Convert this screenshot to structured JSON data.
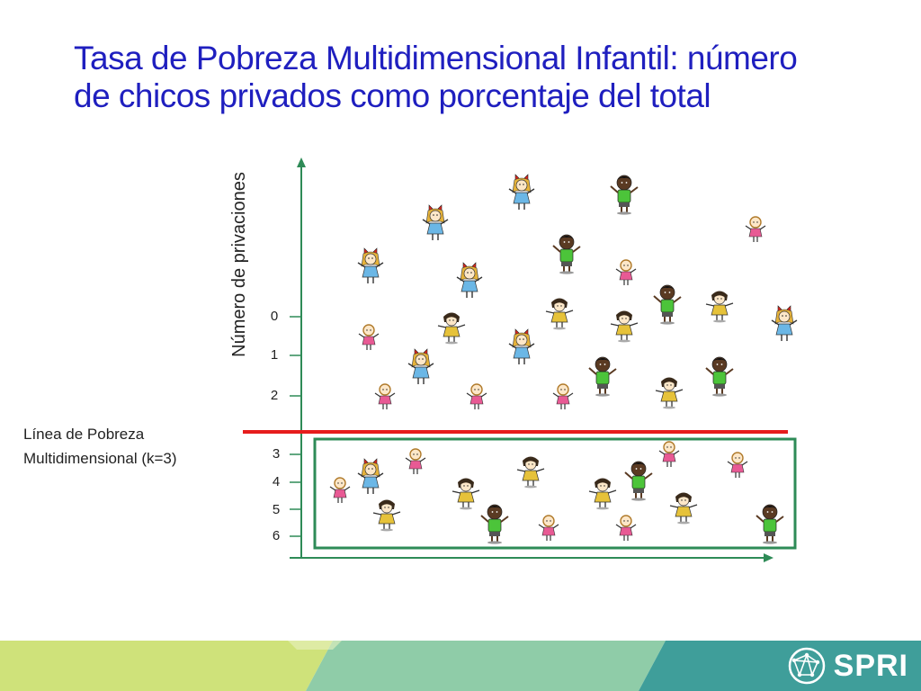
{
  "title": {
    "line1": "Tasa de Pobreza Multidimensional Infantil: número",
    "line2": "de chicos privados como porcentaje del total"
  },
  "y_axis_label": "Número de privaciones",
  "tick_labels": [
    "0",
    "1",
    "2",
    "3",
    "4",
    "5",
    "6"
  ],
  "poverty_line": {
    "label_line1": "Línea de Pobreza",
    "label_line2": "Multidimensional  (k=3)"
  },
  "logo": {
    "text": "SPRI"
  },
  "colors": {
    "title": "#1f1fbf",
    "axis": "#2e8b57",
    "poverty_line": "#e61c1c",
    "box": "#2e8b57",
    "footer_lime": "#cfe27a",
    "footer_green": "#8fcca8",
    "footer_teal": "#3f9e9a"
  },
  "figures": {
    "types": [
      "girl-blue-red-bow",
      "boy-green-dark",
      "girl-pink-small",
      "girl-yellow-dark-hair"
    ],
    "above_line_count": 30,
    "below_line_count": 20
  }
}
